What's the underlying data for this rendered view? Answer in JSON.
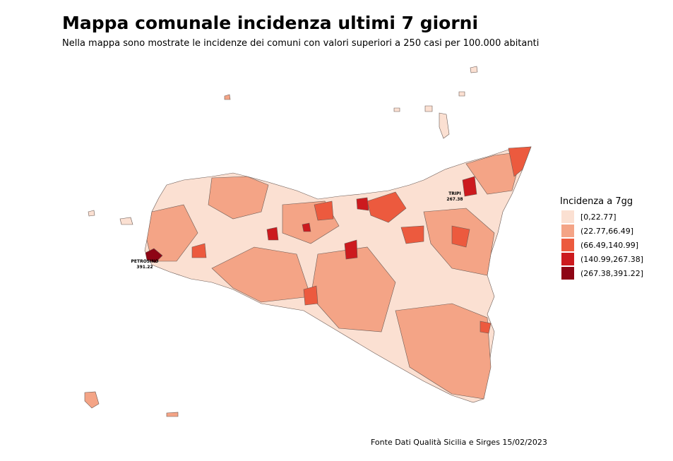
{
  "header": {
    "title": "Mappa comunale incidenza ultimi 7 giorni",
    "subtitle": "Nella mappa sono mostrate le incidenze dei comuni con valori superiori a 250 casi per 100.000 abitanti"
  },
  "legend": {
    "title": "Incidenza a 7gg",
    "items": [
      {
        "label": "[0,22.77]",
        "color": "#fbe0d2"
      },
      {
        "label": "(22.77,66.49]",
        "color": "#f4a486"
      },
      {
        "label": "(66.49,140.99]",
        "color": "#ec5a3e"
      },
      {
        "label": "(140.99,267.38]",
        "color": "#cc1a1e"
      },
      {
        "label": "(267.38,391.22]",
        "color": "#8e0515"
      }
    ]
  },
  "annotations": [
    {
      "name": "PETROSINO",
      "value": 391.22
    },
    {
      "name": "TRIPI",
      "value": 267.38
    }
  ],
  "source": "Fonte Dati Qualità Sicilia e Sirges 15/02/2023"
}
